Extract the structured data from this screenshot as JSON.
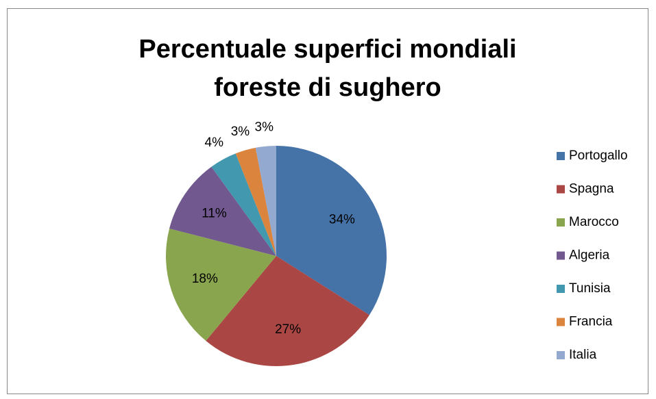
{
  "chart_data": {
    "type": "pie",
    "title": "Percentuale superfici mondiali foreste di sughero",
    "categories": [
      "Portogallo",
      "Spagna",
      "Marocco",
      "Algeria",
      "Tunisia",
      "Francia",
      "Italia"
    ],
    "values": [
      34,
      27,
      18,
      11,
      4,
      3,
      3
    ],
    "value_labels": [
      "34%",
      "27%",
      "18%",
      "11%",
      "4%",
      "3%",
      "3%"
    ],
    "colors": [
      "#4572a7",
      "#aa4643",
      "#89a54e",
      "#71588f",
      "#4198af",
      "#db843d",
      "#93a9cf"
    ],
    "legend": "right"
  }
}
